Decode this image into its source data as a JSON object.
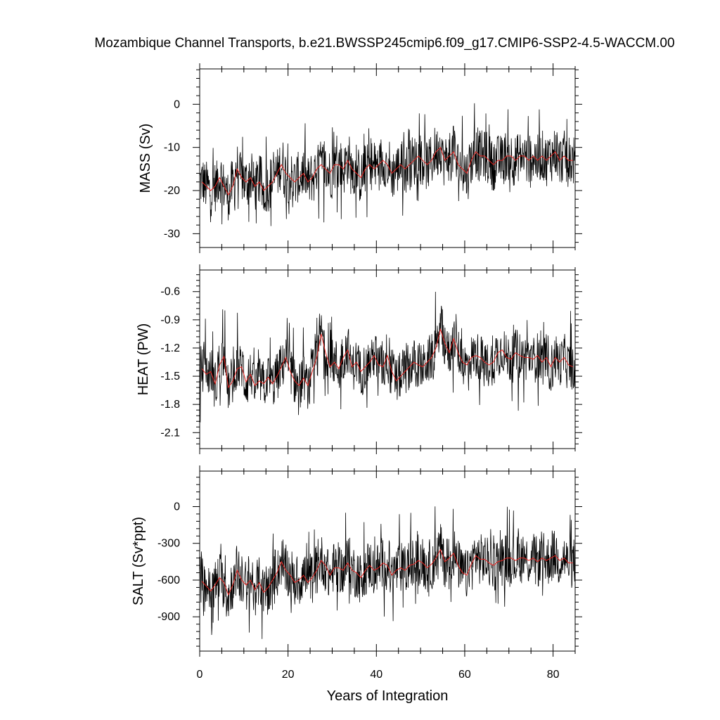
{
  "title": "Mozambique Channel Transports, b.e21.BWSSP245cmip6.f09_g17.CMIP6-SSP2-4.5-WACCM.00",
  "xlabel": "Years of Integration",
  "colors": {
    "monthly": "#000000",
    "annual": "#e8231f"
  },
  "chart_data": [
    {
      "type": "line",
      "panel": "mass",
      "title": "",
      "xlabel": "Years of Integration",
      "ylabel": "MASS (Sv)",
      "xlim": [
        0,
        85
      ],
      "ylim": [
        -33.2,
        8.2
      ],
      "x_ticks": [
        0,
        20,
        40,
        60,
        80
      ],
      "x_tick_labels": [
        "0",
        "20",
        "40",
        "60",
        "80"
      ],
      "y_ticks": [
        -30,
        -20,
        -10,
        0
      ],
      "y_tick_labels": [
        "-30",
        "-20",
        "-10",
        "0"
      ],
      "grid": false,
      "base": -15.5,
      "trend": 3.0,
      "amp": 6.0,
      "spike": 6.5,
      "series": [
        {
          "style": "monthly",
          "annual_x": [
            0.5,
            5.5,
            10.5,
            15.5,
            20.5,
            25.5,
            30.5,
            35.5,
            40.5,
            45.5,
            50.5,
            55.5,
            60.5,
            65.5,
            70.5,
            75.5,
            80.5,
            84.5
          ],
          "annual_y": [
            -18,
            -20,
            -18,
            -19,
            -17,
            -17,
            -15,
            -16,
            -14,
            -14,
            -13,
            -10,
            -14,
            -13,
            -12,
            -12,
            -12,
            -13
          ],
          "annual_range": [
            -33,
            8
          ]
        },
        {
          "style": "annual",
          "x": [
            0.5,
            1.5,
            2.5,
            3.5,
            4.5,
            5.5,
            6.5,
            7.5,
            8.5,
            9.5,
            10.5,
            11.5,
            12.5,
            13.5,
            14.5,
            15.5,
            16.5,
            17.5,
            18.5,
            19.5,
            20.5,
            21.5,
            22.5,
            23.5,
            24.5,
            25.5,
            26.5,
            27.5,
            28.5,
            29.5,
            30.5,
            31.5,
            32.5,
            33.5,
            34.5,
            35.5,
            36.5,
            37.5,
            38.5,
            39.5,
            40.5,
            41.5,
            42.5,
            43.5,
            44.5,
            45.5,
            46.5,
            47.5,
            48.5,
            49.5,
            50.5,
            51.5,
            52.5,
            53.5,
            54.5,
            55.5,
            56.5,
            57.5,
            58.5,
            59.5,
            60.5,
            61.5,
            62.5,
            63.5,
            64.5,
            65.5,
            66.5,
            67.5,
            68.5,
            69.5,
            70.5,
            71.5,
            72.5,
            73.5,
            74.5,
            75.5,
            76.5,
            77.5,
            78.5,
            79.5,
            80.5,
            81.5,
            82.5,
            83.5,
            84.5
          ],
          "y": [
            -18,
            -19,
            -20,
            -19,
            -17,
            -19,
            -21,
            -19,
            -15,
            -17,
            -18,
            -17,
            -19,
            -18,
            -20,
            -19,
            -18,
            -16,
            -14,
            -16,
            -17,
            -18,
            -17,
            -16,
            -18,
            -17,
            -15,
            -14,
            -15,
            -16,
            -14,
            -14,
            -15,
            -13,
            -15,
            -16,
            -17,
            -15,
            -14,
            -15,
            -14,
            -13,
            -14,
            -16,
            -15,
            -14,
            -15,
            -14,
            -13,
            -12,
            -13,
            -14,
            -13,
            -11,
            -10,
            -13,
            -12,
            -11,
            -14,
            -15,
            -16,
            -13,
            -11,
            -12,
            -12,
            -13,
            -14,
            -13,
            -13,
            -12,
            -12,
            -13,
            -12,
            -12,
            -13,
            -12,
            -13,
            -12,
            -13,
            -12,
            -11,
            -13,
            -12,
            -13,
            -13
          ]
        }
      ]
    },
    {
      "type": "line",
      "panel": "heat",
      "title": "",
      "xlabel": "Years of Integration",
      "ylabel": "HEAT (PW)",
      "xlim": [
        0,
        85
      ],
      "ylim": [
        -2.27,
        -0.37
      ],
      "x_ticks": [
        0,
        20,
        40,
        60,
        80
      ],
      "x_tick_labels": [
        "0",
        "20",
        "40",
        "60",
        "80"
      ],
      "y_ticks": [
        -2.1,
        -1.8,
        -1.5,
        -1.2,
        -0.9,
        -0.6
      ],
      "y_tick_labels": [
        "-2.1",
        "-1.8",
        "-1.5",
        "-1.2",
        "-0.9",
        "-0.6"
      ],
      "grid": false,
      "base": -1.5,
      "trend": 0.15,
      "amp": 0.25,
      "spike": 0.35,
      "series": [
        {
          "style": "monthly",
          "annual_range": [
            -2.27,
            -0.37
          ]
        },
        {
          "style": "annual",
          "x": [
            0.5,
            1.5,
            2.5,
            3.5,
            4.5,
            5.5,
            6.5,
            7.5,
            8.5,
            9.5,
            10.5,
            11.5,
            12.5,
            13.5,
            14.5,
            15.5,
            16.5,
            17.5,
            18.5,
            19.5,
            20.5,
            21.5,
            22.5,
            23.5,
            24.5,
            25.5,
            26.5,
            27.5,
            28.5,
            29.5,
            30.5,
            31.5,
            32.5,
            33.5,
            34.5,
            35.5,
            36.5,
            37.5,
            38.5,
            39.5,
            40.5,
            41.5,
            42.5,
            43.5,
            44.5,
            45.5,
            46.5,
            47.5,
            48.5,
            49.5,
            50.5,
            51.5,
            52.5,
            53.5,
            54.5,
            55.5,
            56.5,
            57.5,
            58.5,
            59.5,
            60.5,
            61.5,
            62.5,
            63.5,
            64.5,
            65.5,
            66.5,
            67.5,
            68.5,
            69.5,
            70.5,
            71.5,
            72.5,
            73.5,
            74.5,
            75.5,
            76.5,
            77.5,
            78.5,
            79.5,
            80.5,
            81.5,
            82.5,
            83.5,
            84.5
          ],
          "y": [
            -1.42,
            -1.48,
            -1.45,
            -1.58,
            -1.38,
            -1.29,
            -1.62,
            -1.55,
            -1.42,
            -1.4,
            -1.56,
            -1.48,
            -1.6,
            -1.55,
            -1.58,
            -1.51,
            -1.58,
            -1.5,
            -1.4,
            -1.3,
            -1.45,
            -1.55,
            -1.6,
            -1.52,
            -1.6,
            -1.45,
            -1.3,
            -1.05,
            -1.25,
            -1.4,
            -1.35,
            -1.42,
            -1.3,
            -1.22,
            -1.4,
            -1.35,
            -1.45,
            -1.4,
            -1.35,
            -1.28,
            -1.38,
            -1.4,
            -1.28,
            -1.45,
            -1.55,
            -1.5,
            -1.45,
            -1.4,
            -1.35,
            -1.38,
            -1.4,
            -1.35,
            -1.3,
            -1.2,
            -1.0,
            -1.15,
            -1.25,
            -1.1,
            -1.25,
            -1.35,
            -1.38,
            -1.3,
            -1.28,
            -1.3,
            -1.35,
            -1.38,
            -1.35,
            -1.25,
            -1.22,
            -1.3,
            -1.32,
            -1.25,
            -1.28,
            -1.3,
            -1.3,
            -1.32,
            -1.28,
            -1.35,
            -1.3,
            -1.4,
            -1.3,
            -1.35,
            -1.3,
            -1.38,
            -1.4
          ]
        }
      ]
    },
    {
      "type": "line",
      "panel": "salt",
      "title": "",
      "xlabel": "Years of Integration",
      "ylabel": "SALT (Sv*ppt)",
      "xlim": [
        0,
        85
      ],
      "ylim": [
        -1180,
        290
      ],
      "x_ticks": [
        0,
        20,
        40,
        60,
        80
      ],
      "x_tick_labels": [
        "0",
        "20",
        "40",
        "60",
        "80"
      ],
      "y_ticks": [
        -900,
        -600,
        -300,
        0
      ],
      "y_tick_labels": [
        "-900",
        "-600",
        "-300",
        "0"
      ],
      "grid": false,
      "base": -540,
      "trend": 105,
      "amp": 210,
      "spike": 230,
      "series": [
        {
          "style": "monthly",
          "annual_range": [
            -1180,
            290
          ]
        },
        {
          "style": "annual",
          "x": [
            0.5,
            1.5,
            2.5,
            3.5,
            4.5,
            5.5,
            6.5,
            7.5,
            8.5,
            9.5,
            10.5,
            11.5,
            12.5,
            13.5,
            14.5,
            15.5,
            16.5,
            17.5,
            18.5,
            19.5,
            20.5,
            21.5,
            22.5,
            23.5,
            24.5,
            25.5,
            26.5,
            27.5,
            28.5,
            29.5,
            30.5,
            31.5,
            32.5,
            33.5,
            34.5,
            35.5,
            36.5,
            37.5,
            38.5,
            39.5,
            40.5,
            41.5,
            42.5,
            43.5,
            44.5,
            45.5,
            46.5,
            47.5,
            48.5,
            49.5,
            50.5,
            51.5,
            52.5,
            53.5,
            54.5,
            55.5,
            56.5,
            57.5,
            58.5,
            59.5,
            60.5,
            61.5,
            62.5,
            63.5,
            64.5,
            65.5,
            66.5,
            67.5,
            68.5,
            69.5,
            70.5,
            71.5,
            72.5,
            73.5,
            74.5,
            75.5,
            76.5,
            77.5,
            78.5,
            79.5,
            80.5,
            81.5,
            82.5,
            83.5,
            84.5
          ],
          "y": [
            -610,
            -650,
            -690,
            -640,
            -580,
            -620,
            -720,
            -640,
            -520,
            -600,
            -640,
            -600,
            -680,
            -620,
            -700,
            -660,
            -600,
            -540,
            -450,
            -520,
            -560,
            -620,
            -600,
            -560,
            -620,
            -580,
            -520,
            -440,
            -480,
            -560,
            -500,
            -500,
            -520,
            -460,
            -520,
            -540,
            -580,
            -520,
            -480,
            -520,
            -500,
            -460,
            -480,
            -560,
            -520,
            -500,
            -520,
            -480,
            -470,
            -440,
            -460,
            -500,
            -470,
            -420,
            -350,
            -450,
            -420,
            -380,
            -480,
            -540,
            -560,
            -470,
            -400,
            -430,
            -430,
            -460,
            -480,
            -450,
            -440,
            -420,
            -420,
            -440,
            -420,
            -420,
            -440,
            -420,
            -450,
            -420,
            -440,
            -420,
            -400,
            -440,
            -420,
            -460,
            -460
          ]
        }
      ]
    }
  ]
}
